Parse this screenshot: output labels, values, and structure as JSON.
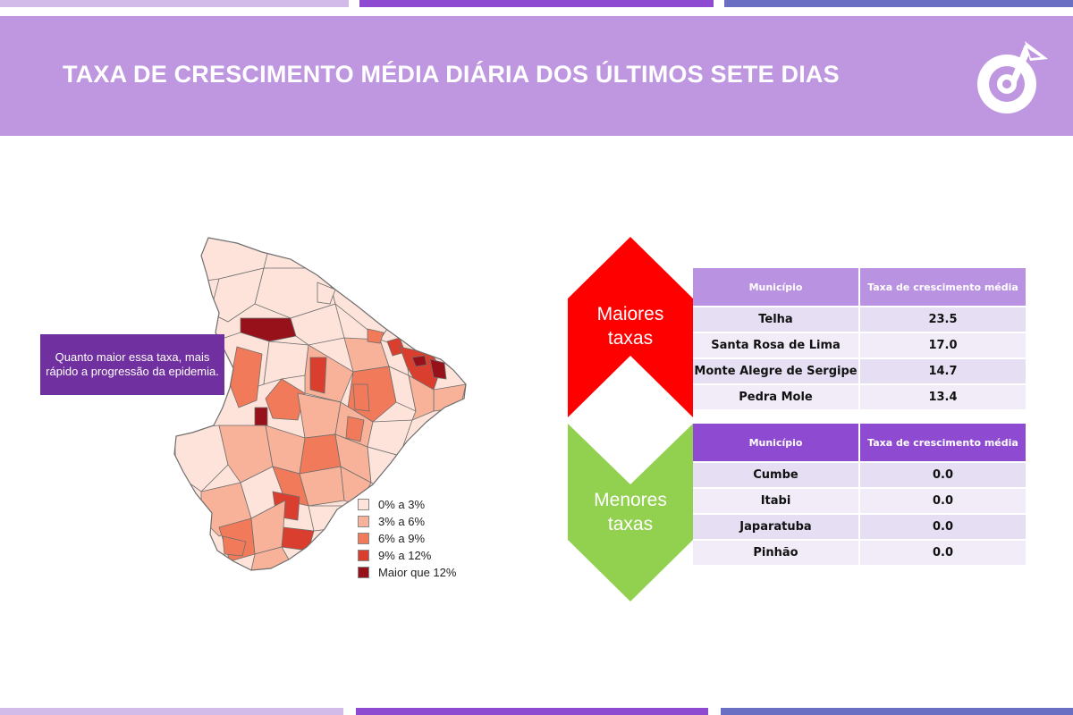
{
  "header": {
    "title": "TAXA DE CRESCIMENTO MÉDIA DIÁRIA DOS ÚLTIMOS SETE DIAS",
    "logo_icon": "target-arrow-logo-icon"
  },
  "colors": {
    "banner": "#be97e0",
    "top_bars": [
      "#d3bbe9",
      "#8e4ad0",
      "#6a6fc4"
    ],
    "high_arrow": "#ff0000",
    "low_arrow": "#92d050",
    "note_bg": "#7030a0"
  },
  "note": {
    "text": "Quanto maior essa taxa, mais rápido a progressão da epidemia."
  },
  "legend": {
    "items": [
      {
        "label": "0% a 3%",
        "color": "#fde3d9"
      },
      {
        "label": "3% a 6%",
        "color": "#f7b299"
      },
      {
        "label": "6% a 9%",
        "color": "#f07a5a"
      },
      {
        "label": "9% a 12%",
        "color": "#d93e2e"
      },
      {
        "label": "Maior que 12%",
        "color": "#96111a"
      }
    ]
  },
  "high": {
    "label_line1": "Maiores",
    "label_line2": "taxas",
    "headers": [
      "Município",
      "Taxa de crescimento média"
    ],
    "rows": [
      [
        "Telha",
        "23.5"
      ],
      [
        "Santa Rosa de Lima",
        "17.0"
      ],
      [
        "Monte Alegre de Sergipe",
        "14.7"
      ],
      [
        "Pedra Mole",
        "13.4"
      ]
    ]
  },
  "low": {
    "label_line1": "Menores",
    "label_line2": "taxas",
    "headers": [
      "Município",
      "Taxa de crescimento média"
    ],
    "rows": [
      [
        "Cumbe",
        "0.0"
      ],
      [
        "Itabi",
        "0.0"
      ],
      [
        "Japaratuba",
        "0.0"
      ],
      [
        "Pinhão",
        "0.0"
      ]
    ]
  }
}
